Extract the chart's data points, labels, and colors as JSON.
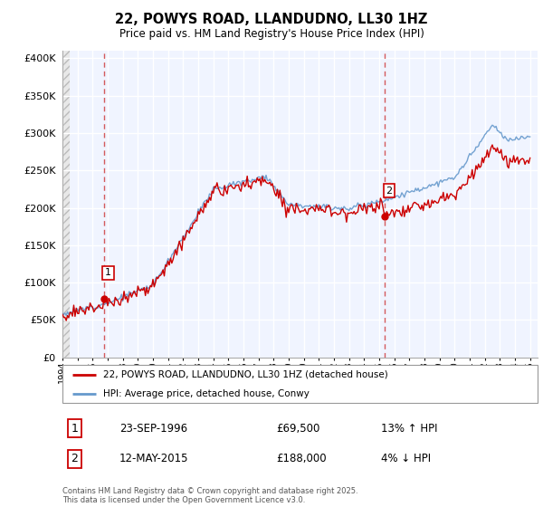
{
  "title": "22, POWYS ROAD, LLANDUDNO, LL30 1HZ",
  "subtitle": "Price paid vs. HM Land Registry's House Price Index (HPI)",
  "sale1_date": "23-SEP-1996",
  "sale1_price": 69500,
  "sale1_hpi": "13% ↑ HPI",
  "sale2_date": "12-MAY-2015",
  "sale2_price": 188000,
  "sale2_hpi": "4% ↓ HPI",
  "legend_line1": "22, POWYS ROAD, LLANDUDNO, LL30 1HZ (detached house)",
  "legend_line2": "HPI: Average price, detached house, Conwy",
  "footnote": "Contains HM Land Registry data © Crown copyright and database right 2025.\nThis data is licensed under the Open Government Licence v3.0.",
  "line_color_red": "#cc0000",
  "line_color_blue": "#6699cc",
  "background_color": "#ffffff",
  "grid_color": "#cccccc",
  "vline_color": "#cc3333",
  "ylim": [
    0,
    410000
  ],
  "yticks": [
    0,
    50000,
    100000,
    150000,
    200000,
    250000,
    300000,
    350000,
    400000
  ],
  "sale1_x": 1996.73,
  "sale2_x": 2015.36,
  "xmin": 1994,
  "xmax": 2025.5
}
